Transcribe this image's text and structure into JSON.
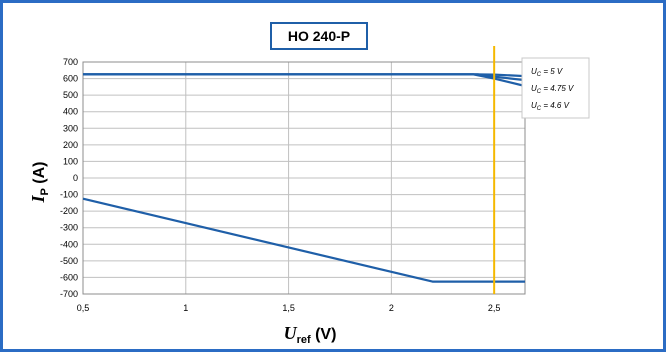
{
  "chart_data": {
    "type": "line",
    "title": "HO 240-P",
    "xlabel": {
      "main": "U",
      "sub": "ref",
      "unit": " (V)"
    },
    "ylabel": {
      "main": "I",
      "sub": "P",
      "unit": " (A)"
    },
    "xlim": [
      0.5,
      2.65
    ],
    "ylim": [
      -700,
      700
    ],
    "xticks": [
      0.5,
      1,
      1.5,
      2,
      2.5
    ],
    "xtick_labels": [
      "0,5",
      "1",
      "1,5",
      "2",
      "2,5"
    ],
    "yticks": [
      700,
      600,
      500,
      400,
      300,
      200,
      100,
      0,
      -100,
      -200,
      -300,
      -400,
      -500,
      -600,
      -700
    ],
    "grid": true,
    "series": [
      {
        "name": "U_C = 5 V",
        "x": [
          0.5,
          2.4,
          2.5,
          2.65
        ],
        "y": [
          625,
          625,
          624,
          615
        ]
      },
      {
        "name": "U_C = 4.75 V",
        "x": [
          0.5,
          2.42,
          2.5,
          2.65
        ],
        "y": [
          625,
          625,
          612,
          590
        ]
      },
      {
        "name": "U_C = 4.6 V",
        "x": [
          0.5,
          2.4,
          2.5,
          2.65
        ],
        "y": [
          625,
          625,
          600,
          555
        ]
      },
      {
        "name": "",
        "x": [
          0.5,
          2.2,
          2.65
        ],
        "y": [
          -125,
          -625,
          -625
        ]
      }
    ],
    "marker_line": {
      "x": 2.5,
      "color": "#f5b800"
    },
    "legend": {
      "placement": "right",
      "entries": [
        {
          "main": "U",
          "sub": "C",
          "rest": " = 5 V"
        },
        {
          "main": "U",
          "sub": "C",
          "rest": " = 4.75 V"
        },
        {
          "main": "U",
          "sub": "C",
          "rest": " = 4.6 V"
        }
      ]
    },
    "colors": {
      "series": "#1f5fa8",
      "frame": "#2b6cc4",
      "grid": "#c0c0c0",
      "marker": "#f5b800"
    }
  }
}
